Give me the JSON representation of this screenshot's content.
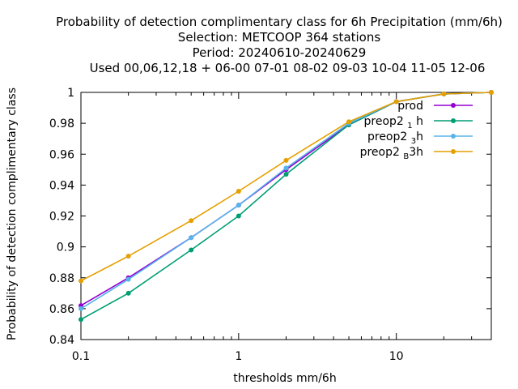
{
  "chart_data": {
    "type": "line",
    "title_lines": [
      "Probability of detection complimentary class  for 6h Precipitation (mm/6h)",
      "Selection: METCOOP    364 stations",
      "Period: 20240610-20240629",
      "Used  00,06,12,18 + 06-00 07-01 08-02 09-03 10-04 11-05 12-06"
    ],
    "xlabel": "thresholds mm/6h",
    "ylabel": "Probability of detection complimentary class",
    "x_scale": "log",
    "xlim": [
      0.1,
      40
    ],
    "ylim": [
      0.84,
      1.0
    ],
    "x_ticks": [
      {
        "value": 0.1,
        "label": "0.1"
      },
      {
        "value": 1,
        "label": "1"
      },
      {
        "value": 10,
        "label": "10"
      }
    ],
    "y_ticks": [
      {
        "value": 0.84,
        "label": "0.84"
      },
      {
        "value": 0.86,
        "label": "0.86"
      },
      {
        "value": 0.88,
        "label": "0.88"
      },
      {
        "value": 0.9,
        "label": "0.9"
      },
      {
        "value": 0.92,
        "label": "0.92"
      },
      {
        "value": 0.94,
        "label": "0.94"
      },
      {
        "value": 0.96,
        "label": "0.96"
      },
      {
        "value": 0.98,
        "label": "0.98"
      },
      {
        "value": 1.0,
        "label": "1"
      }
    ],
    "grid": false,
    "legend_position": "top-right",
    "x": [
      0.1,
      0.2,
      0.5,
      1,
      2,
      5,
      10,
      20,
      40
    ],
    "series": [
      {
        "name": "prod",
        "legend_parts": [
          [
            "prod",
            ""
          ]
        ],
        "color": "#9400d3",
        "values": [
          0.862,
          0.88,
          0.906,
          0.927,
          0.95,
          0.979,
          0.994,
          0.999,
          1.0
        ]
      },
      {
        "name": "preop2_1h",
        "legend_parts": [
          [
            "preop2 ",
            ""
          ],
          [
            "1",
            "sub"
          ],
          [
            " h",
            ""
          ]
        ],
        "color": "#009e73",
        "values": [
          0.853,
          0.87,
          0.898,
          0.92,
          0.947,
          0.979,
          0.994,
          0.999,
          1.0
        ]
      },
      {
        "name": "preop2_3h",
        "legend_parts": [
          [
            "preop2 ",
            ""
          ],
          [
            "3",
            "sub"
          ],
          [
            "h",
            ""
          ]
        ],
        "color": "#56b4e9",
        "values": [
          0.86,
          0.879,
          0.906,
          0.927,
          0.951,
          0.98,
          0.994,
          0.999,
          1.0
        ]
      },
      {
        "name": "preop2_B3h",
        "legend_parts": [
          [
            "preop2 ",
            ""
          ],
          [
            "B",
            "sub"
          ],
          [
            "3h",
            ""
          ]
        ],
        "color": "#e69f00",
        "values": [
          0.878,
          0.894,
          0.917,
          0.936,
          0.956,
          0.981,
          0.994,
          0.999,
          1.0
        ]
      }
    ]
  }
}
